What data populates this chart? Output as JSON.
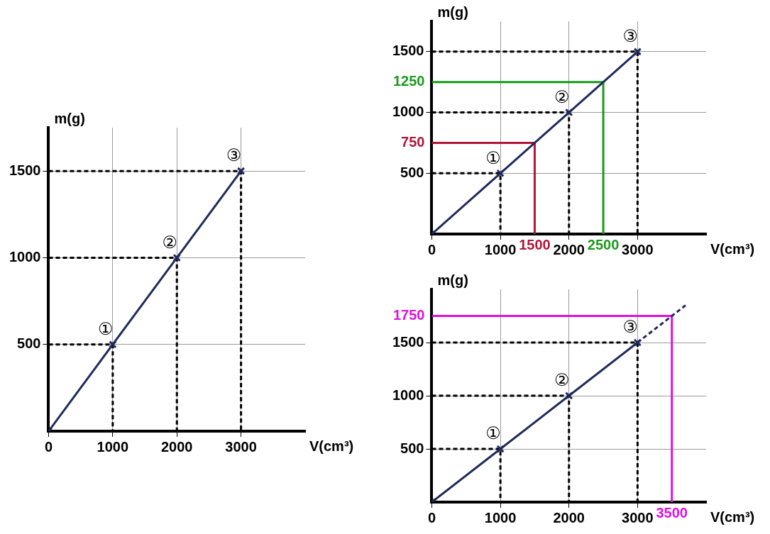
{
  "chart_data": [
    {
      "type": "line",
      "xlabel": "V(cm³)",
      "ylabel": "m(g)",
      "xlim": [
        0,
        4000
      ],
      "ylim": [
        0,
        1750
      ],
      "xticks": [
        0,
        1000,
        2000,
        3000
      ],
      "yticks": [
        500,
        1000,
        1500
      ],
      "grid": true,
      "marker": "cross",
      "line_style": "solid",
      "series": [
        {
          "color": "#1f2a5c",
          "x": [
            0,
            1000,
            2000,
            3000
          ],
          "values": [
            0,
            500,
            1000,
            1500
          ]
        },
        {
          "color": "#000000",
          "line_style": "dashed",
          "marker": "none",
          "x": [
            0,
            1000,
            1000
          ],
          "values": [
            500,
            500,
            0
          ]
        },
        {
          "color": "#000000",
          "line_style": "dashed",
          "marker": "none",
          "x": [
            0,
            2000,
            2000
          ],
          "values": [
            1000,
            1000,
            0
          ]
        },
        {
          "color": "#000000",
          "line_style": "dashed",
          "marker": "none",
          "x": [
            0,
            3000,
            3000
          ],
          "values": [
            1500,
            1500,
            0
          ]
        }
      ],
      "annotations": [
        {
          "text": "①",
          "x": 1000,
          "y": 500
        },
        {
          "text": "②",
          "x": 2000,
          "y": 1000
        },
        {
          "text": "③",
          "x": 3000,
          "y": 1500
        }
      ]
    },
    {
      "type": "line",
      "xlabel": "V(cm³)",
      "ylabel": "m(g)",
      "xlim": [
        0,
        4000
      ],
      "ylim": [
        0,
        1750
      ],
      "xticks": [
        0,
        1000,
        2000,
        3000
      ],
      "yticks": [
        500,
        1000,
        1500
      ],
      "grid": true,
      "marker": "cross",
      "line_style": "solid",
      "series": [
        {
          "color": "#1f2a5c",
          "x": [
            0,
            1000,
            2000,
            3000
          ],
          "values": [
            0,
            500,
            1000,
            1500
          ]
        },
        {
          "color": "#000000",
          "line_style": "dashed",
          "marker": "none",
          "x": [
            0,
            1000,
            1000
          ],
          "values": [
            500,
            500,
            0
          ]
        },
        {
          "color": "#000000",
          "line_style": "dashed",
          "marker": "none",
          "x": [
            0,
            2000,
            2000
          ],
          "values": [
            1000,
            1000,
            0
          ]
        },
        {
          "color": "#000000",
          "line_style": "dashed",
          "marker": "none",
          "x": [
            0,
            3000,
            3000
          ],
          "values": [
            1500,
            1500,
            0
          ]
        },
        {
          "color": "#b0163a",
          "marker": "none",
          "x": [
            0,
            1500,
            1500
          ],
          "values": [
            750,
            750,
            0
          ]
        },
        {
          "color": "#1a9a1a",
          "marker": "none",
          "x": [
            2500,
            2500,
            0
          ],
          "values": [
            0,
            1250,
            1250
          ]
        }
      ],
      "annotations": [
        {
          "text": "①",
          "x": 1000,
          "y": 500
        },
        {
          "text": "②",
          "x": 2000,
          "y": 1000
        },
        {
          "text": "③",
          "x": 3000,
          "y": 1500
        },
        {
          "text": "750",
          "x": 0,
          "y": 750
        },
        {
          "text": "1500",
          "x": 1500,
          "y": 0
        },
        {
          "text": "1250",
          "x": 0,
          "y": 1250
        },
        {
          "text": "2500",
          "x": 2500,
          "y": 0
        }
      ]
    },
    {
      "type": "line",
      "xlabel": "V(cm³)",
      "ylabel": "m(g)",
      "xlim": [
        0,
        4000
      ],
      "ylim": [
        0,
        2000
      ],
      "xticks": [
        0,
        1000,
        2000,
        3000
      ],
      "yticks": [
        500,
        1000,
        1500
      ],
      "grid": true,
      "marker": "cross",
      "line_style": "solid",
      "series": [
        {
          "color": "#1f2a5c",
          "x": [
            0,
            1000,
            2000,
            3000
          ],
          "values": [
            0,
            500,
            1000,
            1500
          ]
        },
        {
          "color": "#1f2a5c",
          "line_style": "dashed",
          "marker": "none",
          "x": [
            3000,
            3700
          ],
          "values": [
            1500,
            1850
          ]
        },
        {
          "color": "#000000",
          "line_style": "dashed",
          "marker": "none",
          "x": [
            0,
            1000,
            1000
          ],
          "values": [
            500,
            500,
            0
          ]
        },
        {
          "color": "#000000",
          "line_style": "dashed",
          "marker": "none",
          "x": [
            0,
            2000,
            2000
          ],
          "values": [
            1000,
            1000,
            0
          ]
        },
        {
          "color": "#000000",
          "line_style": "dashed",
          "marker": "none",
          "x": [
            0,
            3000,
            3000
          ],
          "values": [
            1500,
            1500,
            0
          ]
        },
        {
          "color": "#e010e0",
          "marker": "none",
          "x": [
            3500,
            3500,
            0
          ],
          "values": [
            0,
            1750,
            1750
          ]
        }
      ],
      "annotations": [
        {
          "text": "①",
          "x": 1000,
          "y": 500
        },
        {
          "text": "②",
          "x": 2000,
          "y": 1000
        },
        {
          "text": "③",
          "x": 3000,
          "y": 1500
        },
        {
          "text": "1750",
          "x": 0,
          "y": 1750
        },
        {
          "text": "3500",
          "x": 3500,
          "y": 0
        }
      ]
    }
  ]
}
